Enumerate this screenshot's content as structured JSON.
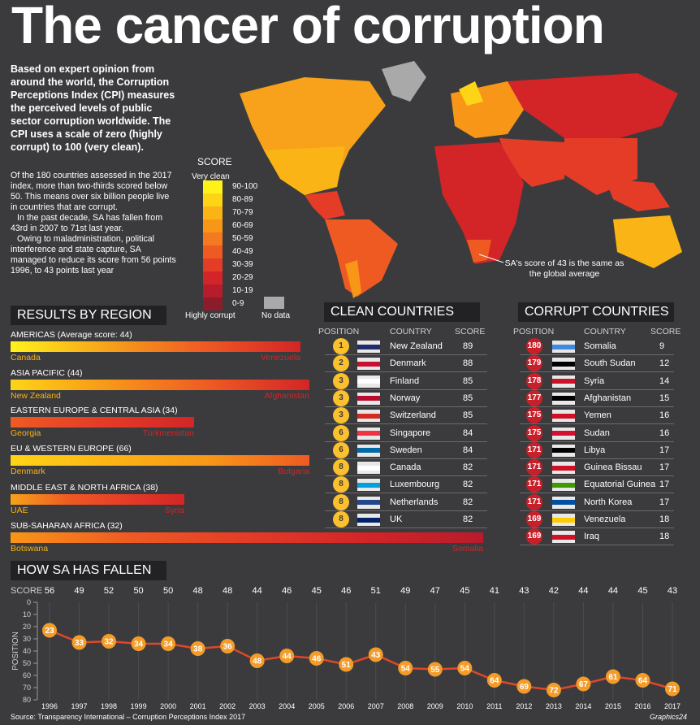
{
  "title": "The cancer of corruption",
  "intro": "Based on expert opinion from around the world, the Corruption Perceptions Index (CPI) measures the perceived levels of public sector corruption worldwide. The CPI uses a scale of zero (highly corrupt) to 100 (very clean).",
  "body": [
    "Of the 180 countries assessed in the 2017 index, more than two-thirds scored below 50. This means over six billion people live in countries that are corrupt.",
    "In the past decade, SA has fallen from 43rd in 2007 to 71st last year.",
    "Owing to maladministration, political interference and state capture, SA managed to reduce its score from 56 points 1996, to 43 points last year"
  ],
  "legend": {
    "title": "SCORE",
    "top": "Very clean",
    "bottom": "Highly corrupt",
    "nodata": "No data",
    "bins": [
      "90-100",
      "80-89",
      "70-79",
      "60-69",
      "50-59",
      "40-49",
      "30-39",
      "20-29",
      "10-19",
      "0-9"
    ],
    "colors": [
      "#fff21a",
      "#fdd516",
      "#fbb415",
      "#f89618",
      "#f47a1f",
      "#ef5a23",
      "#e43c27",
      "#d32527",
      "#b71c2c",
      "#8c1c2a"
    ]
  },
  "map_annotation": "SA's score of 43 is the same as the global average",
  "regions_title": "RESULTS BY REGION",
  "regions": [
    {
      "label": "AMERICAS (Average score: 44)",
      "best": "Canada",
      "worst": "Venezuela"
    },
    {
      "label": "ASIA PACIFIC (44)",
      "best": "New Zealand",
      "worst": "Afghanistan"
    },
    {
      "label": "EASTERN EUROPE & CENTRAL ASIA (34)",
      "best": "Georgia",
      "worst": "Turkmenistan"
    },
    {
      "label": "EU & WESTERN EUROPE (66)",
      "best": "Denmark",
      "worst": "Bulgaria"
    },
    {
      "label": "MIDDLE EAST & NORTH AFRICA (38)",
      "best": "UAE",
      "worst": "Syria"
    },
    {
      "label": "SUB-SAHARAN AFRICA (32)",
      "best": "Botswana",
      "worst": "Somalia"
    }
  ],
  "clean": {
    "title": "CLEAN COUNTRIES",
    "headers": {
      "position": "POSITION",
      "country": "COUNTRY",
      "score": "SCORE"
    },
    "rows": [
      {
        "pos": "1",
        "country": "New Zealand",
        "score": "89",
        "flag": "new-zealand-flag"
      },
      {
        "pos": "2",
        "country": "Denmark",
        "score": "88",
        "flag": "denmark-flag"
      },
      {
        "pos": "3",
        "country": "Finland",
        "score": "85",
        "flag": "finland-flag"
      },
      {
        "pos": "3",
        "country": "Norway",
        "score": "85",
        "flag": "norway-flag"
      },
      {
        "pos": "3",
        "country": "Switzerland",
        "score": "85",
        "flag": "switzerland-flag"
      },
      {
        "pos": "6",
        "country": "Singapore",
        "score": "84",
        "flag": "singapore-flag"
      },
      {
        "pos": "6",
        "country": "Sweden",
        "score": "84",
        "flag": "sweden-flag"
      },
      {
        "pos": "8",
        "country": "Canada",
        "score": "82",
        "flag": "canada-flag"
      },
      {
        "pos": "8",
        "country": "Luxembourg",
        "score": "82",
        "flag": "luxembourg-flag"
      },
      {
        "pos": "8",
        "country": "Netherlands",
        "score": "82",
        "flag": "netherlands-flag"
      },
      {
        "pos": "8",
        "country": "UK",
        "score": "82",
        "flag": "uk-flag"
      }
    ]
  },
  "corrupt": {
    "title": "CORRUPT COUNTRIES",
    "headers": {
      "position": "POSITION",
      "country": "COUNTRY",
      "score": "SCORE"
    },
    "rows": [
      {
        "pos": "180",
        "country": "Somalia",
        "score": "9",
        "flag": "somalia-flag"
      },
      {
        "pos": "179",
        "country": "South Sudan",
        "score": "12",
        "flag": "south-sudan-flag"
      },
      {
        "pos": "178",
        "country": "Syria",
        "score": "14",
        "flag": "syria-flag"
      },
      {
        "pos": "177",
        "country": "Afghanistan",
        "score": "15",
        "flag": "afghanistan-flag"
      },
      {
        "pos": "175",
        "country": "Yemen",
        "score": "16",
        "flag": "yemen-flag"
      },
      {
        "pos": "175",
        "country": "Sudan",
        "score": "16",
        "flag": "sudan-flag"
      },
      {
        "pos": "171",
        "country": "Libya",
        "score": "17",
        "flag": "libya-flag"
      },
      {
        "pos": "171",
        "country": "Guinea Bissau",
        "score": "17",
        "flag": "guinea-bissau-flag"
      },
      {
        "pos": "171",
        "country": "Equatorial Guinea",
        "score": "17",
        "flag": "equatorial-guinea-flag"
      },
      {
        "pos": "171",
        "country": "North Korea",
        "score": "17",
        "flag": "north-korea-flag"
      },
      {
        "pos": "169",
        "country": "Venezuela",
        "score": "18",
        "flag": "venezuela-flag"
      },
      {
        "pos": "169",
        "country": "Iraq",
        "score": "18",
        "flag": "iraq-flag"
      }
    ]
  },
  "sa_title": "HOW SA HAS FALLEN",
  "chart_data": {
    "type": "line",
    "title": "HOW SA HAS FALLEN",
    "ylabel": "POSITION",
    "score_label": "SCORE",
    "x": [
      "1996",
      "1997",
      "1998",
      "1999",
      "2000",
      "2001",
      "2002",
      "2003",
      "2004",
      "2005",
      "2006",
      "2007",
      "2008",
      "2009",
      "2010",
      "2011",
      "2012",
      "2013",
      "2014",
      "2015",
      "2016",
      "2017"
    ],
    "scores": [
      "56",
      "49",
      "52",
      "50",
      "50",
      "48",
      "48",
      "44",
      "46",
      "45",
      "46",
      "51",
      "49",
      "47",
      "45",
      "41",
      "43",
      "42",
      "44",
      "44",
      "45",
      "43"
    ],
    "series": [
      {
        "name": "",
        "values": [
          23,
          33,
          32,
          34,
          34,
          38,
          36,
          48,
          44,
          46,
          51,
          43,
          54,
          55,
          54,
          64,
          69,
          72,
          67,
          61,
          64,
          71
        ]
      }
    ],
    "yticks": [
      "0",
      "10",
      "20",
      "30",
      "40",
      "50",
      "60",
      "70",
      "80"
    ],
    "ylim": [
      0,
      80
    ],
    "y_inverted": true,
    "colors": {
      "line": "#e0472a",
      "marker": "#f39c2a"
    }
  },
  "source": "Source: Transparency International – Corruption Perceptions Index 2017",
  "credit": "Graphics24"
}
